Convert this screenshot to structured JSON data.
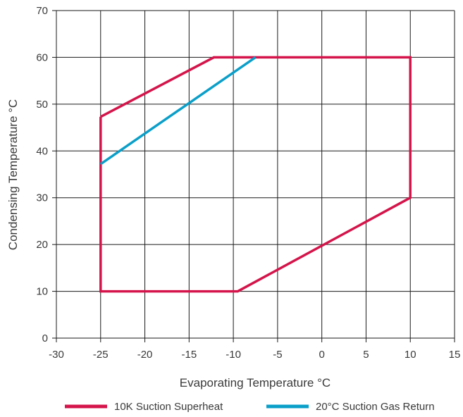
{
  "chart_data": {
    "type": "line",
    "xlabel": "Evaporating Temperature °C",
    "ylabel": "Condensing Temperature °C",
    "xlim": [
      -30,
      15
    ],
    "ylim": [
      0,
      70
    ],
    "x_ticks": [
      -30,
      -25,
      -20,
      -15,
      -10,
      -5,
      0,
      5,
      10,
      15
    ],
    "y_ticks": [
      0,
      10,
      20,
      30,
      40,
      50,
      60,
      70
    ],
    "grid": true,
    "legend_position": "bottom",
    "series": [
      {
        "name": "10K Suction Superheat",
        "color": "#d4144a",
        "x": [
          -25,
          -12.2,
          10,
          10,
          -9.5,
          -25,
          -25
        ],
        "y": [
          47.3,
          60,
          60,
          30,
          10,
          10,
          47.3
        ]
      },
      {
        "name": "20°C Suction Gas Return",
        "color": "#0a9fc9",
        "x": [
          -25,
          -7.5
        ],
        "y": [
          37.2,
          60
        ]
      }
    ]
  }
}
